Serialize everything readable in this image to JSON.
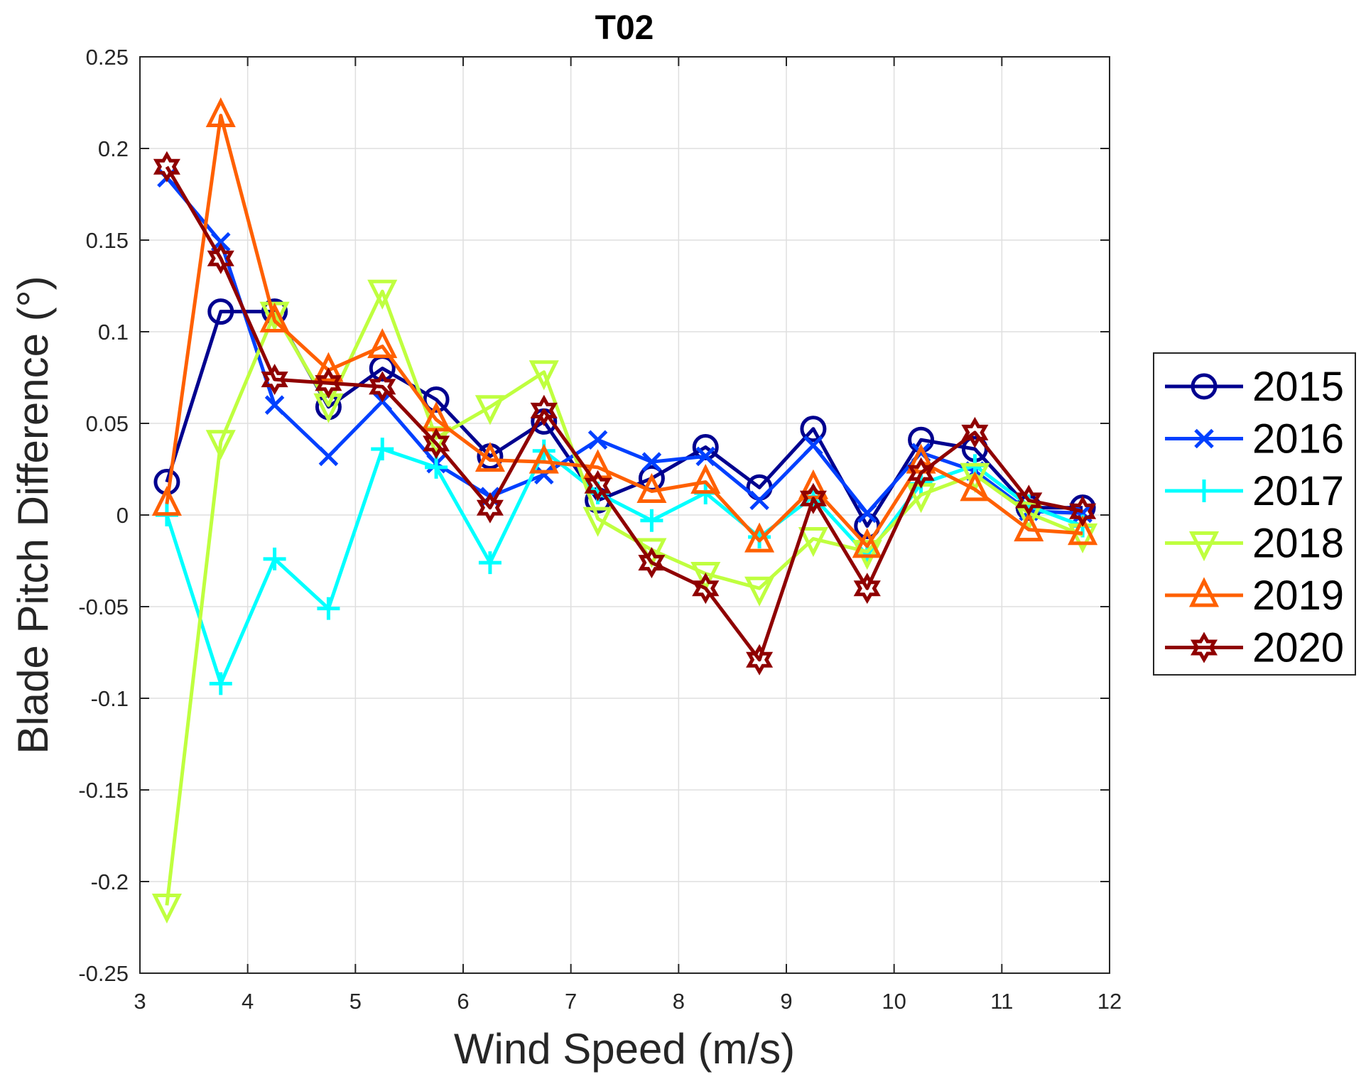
{
  "chart_data": {
    "type": "line",
    "title": "T02",
    "xlabel": "Wind Speed (m/s)",
    "ylabel": "Blade Pitch Difference (°)",
    "xlim": [
      3,
      12
    ],
    "ylim": [
      -0.25,
      0.25
    ],
    "xticks": [
      3,
      4,
      5,
      6,
      7,
      8,
      9,
      10,
      11,
      12
    ],
    "yticks": [
      -0.25,
      -0.2,
      -0.15,
      -0.1,
      -0.05,
      0,
      0.05,
      0.1,
      0.15,
      0.2,
      0.25
    ],
    "xtick_labels": [
      "3",
      "4",
      "5",
      "6",
      "7",
      "8",
      "9",
      "10",
      "11",
      "12"
    ],
    "ytick_labels": [
      "-0.25",
      "-0.2",
      "-0.15",
      "-0.1",
      "-0.05",
      "0",
      "0.05",
      "0.1",
      "0.15",
      "0.2",
      "0.25"
    ],
    "grid": true,
    "legend_position": "outside-right",
    "x": [
      3.25,
      3.75,
      4.25,
      4.75,
      5.25,
      5.75,
      6.25,
      6.75,
      7.25,
      7.75,
      8.25,
      8.75,
      9.25,
      9.75,
      10.25,
      10.75,
      11.25,
      11.75
    ],
    "series": [
      {
        "name": "2015",
        "color": "#00008f",
        "marker": "circle",
        "values": [
          0.018,
          0.111,
          0.111,
          0.059,
          0.08,
          0.063,
          0.032,
          0.051,
          0.008,
          0.02,
          0.037,
          0.015,
          0.047,
          -0.006,
          0.041,
          0.036,
          0.004,
          0.004
        ]
      },
      {
        "name": "2016",
        "color": "#0040ff",
        "marker": "x",
        "values": [
          0.184,
          0.149,
          0.06,
          0.032,
          0.062,
          0.028,
          0.01,
          0.022,
          0.041,
          0.029,
          0.032,
          0.008,
          0.038,
          0.001,
          0.034,
          0.024,
          0.002,
          0.001
        ]
      },
      {
        "name": "2017",
        "color": "#00ffff",
        "marker": "plus",
        "values": [
          0.0,
          -0.092,
          -0.024,
          -0.051,
          0.036,
          0.026,
          -0.026,
          0.035,
          0.012,
          -0.003,
          0.012,
          -0.012,
          0.01,
          -0.022,
          0.017,
          0.027,
          0.005,
          -0.006
        ]
      },
      {
        "name": "2018",
        "color": "#bfff3f",
        "marker": "triangle-down",
        "values": [
          -0.213,
          0.04,
          0.11,
          0.06,
          0.122,
          0.042,
          0.059,
          0.078,
          -0.002,
          -0.019,
          -0.032,
          -0.04,
          -0.013,
          -0.02,
          0.011,
          0.022,
          0.001,
          -0.011
        ]
      },
      {
        "name": "2019",
        "color": "#ff6000",
        "marker": "triangle-up",
        "values": [
          0.006,
          0.218,
          0.106,
          0.079,
          0.092,
          0.052,
          0.03,
          0.029,
          0.026,
          0.013,
          0.018,
          -0.014,
          0.015,
          -0.017,
          0.029,
          0.014,
          -0.008,
          -0.01
        ]
      },
      {
        "name": "2020",
        "color": "#8f0000",
        "marker": "hexagram",
        "values": [
          0.19,
          0.14,
          0.074,
          0.072,
          0.07,
          0.039,
          0.004,
          0.057,
          0.016,
          -0.026,
          -0.04,
          -0.079,
          0.009,
          -0.04,
          0.023,
          0.045,
          0.008,
          0.002
        ]
      }
    ]
  }
}
